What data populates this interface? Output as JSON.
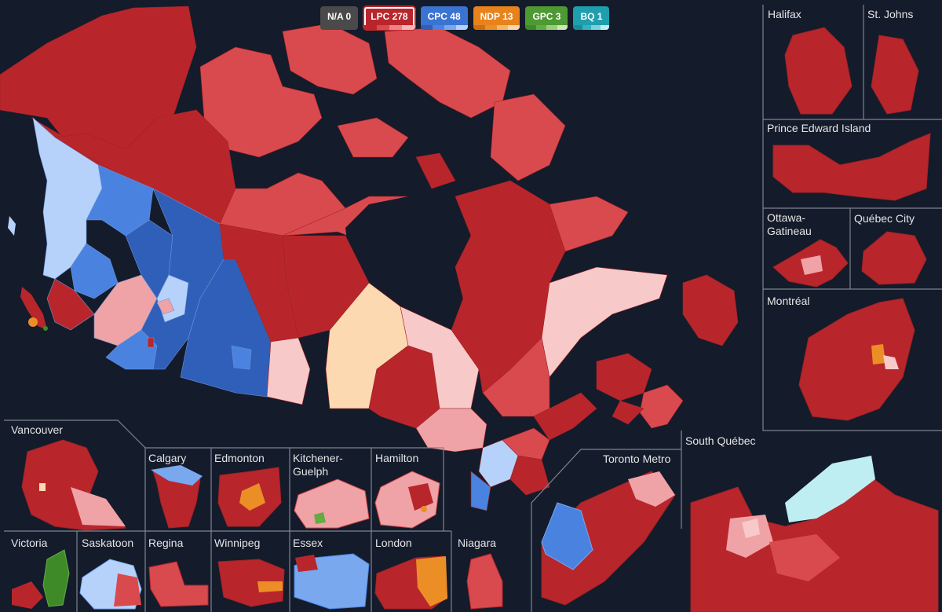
{
  "legend": [
    {
      "label": "N/A 0",
      "color": "#4a4a4a",
      "shades": [
        "#4a4a4a",
        "#4a4a4a",
        "#4a4a4a",
        "#4a4a4a"
      ],
      "selected": false
    },
    {
      "label": "LPC 278",
      "color": "#b8262c",
      "shades": [
        "#b8262c",
        "#d94a4e",
        "#ee8287",
        "#f7b6b9"
      ],
      "selected": true
    },
    {
      "label": "CPC 48",
      "color": "#3b73d1",
      "shades": [
        "#2f5fb8",
        "#4a82e0",
        "#7aa8ee",
        "#b7d2fa"
      ],
      "selected": false
    },
    {
      "label": "NDP 13",
      "color": "#e8831c",
      "shades": [
        "#d06e10",
        "#ec8e26",
        "#f4b76a",
        "#fad8ad"
      ],
      "selected": false
    },
    {
      "label": "GPC 3",
      "color": "#4d9a32",
      "shades": [
        "#3f8a28",
        "#63ac44",
        "#98cf7c",
        "#c9e8b6"
      ],
      "selected": false
    },
    {
      "label": "BQ 1",
      "color": "#1f9eae",
      "shades": [
        "#178c9b",
        "#35b2c0",
        "#79d3dc",
        "#bfeef2"
      ],
      "selected": false
    }
  ],
  "insets": {
    "halifax": "Halifax",
    "stjohns": "St. Johns",
    "pei": "Prince Edward Island",
    "ottawa": "Ottawa-\nGatineau",
    "quebec_city": "Québec City",
    "montreal": "Montréal",
    "south_quebec": "South Québec",
    "toronto": "Toronto Metro",
    "vancouver": "Vancouver",
    "calgary": "Calgary",
    "edmonton": "Edmonton",
    "kitchener": "Kitchener-\nGuelph",
    "hamilton": "Hamilton",
    "victoria": "Victoria",
    "saskatoon": "Saskatoon",
    "regina": "Regina",
    "winnipeg": "Winnipeg",
    "essex": "Essex",
    "london": "London",
    "niagara": "Niagara"
  },
  "colors": {
    "background": "#141b2b",
    "lpc_dark": "#b8262c",
    "lpc_mid": "#d94a4e",
    "lpc_light": "#f0a3a6",
    "lpc_pale": "#f8c9c9",
    "cpc_dark": "#2f5fb8",
    "cpc_mid": "#4a82e0",
    "cpc_light": "#b7d2fa",
    "ndp": "#ec8e26",
    "ndp_pale": "#fcd9b1",
    "gpc": "#63ac44",
    "bq_light": "#bfeef2",
    "border": "#7d8490"
  }
}
